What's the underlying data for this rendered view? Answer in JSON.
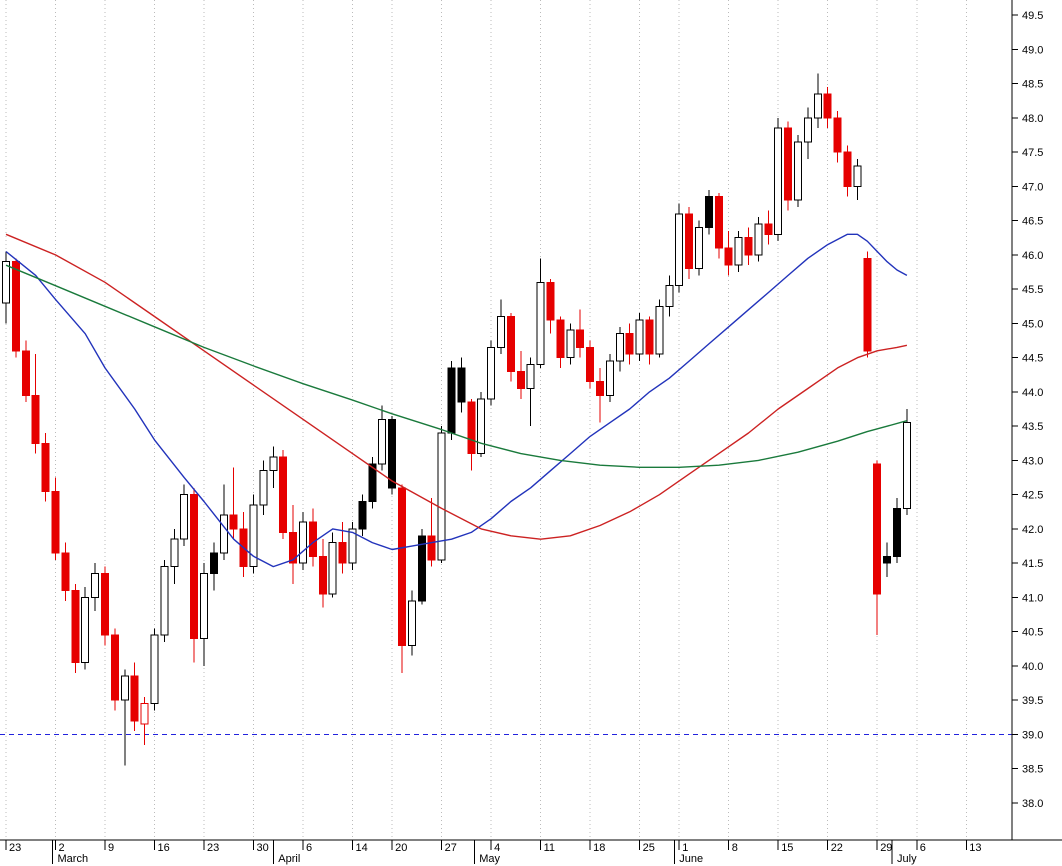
{
  "chart_data": {
    "type": "candlestick",
    "title": "",
    "ylim": [
      37.46,
      49.72
    ],
    "grid": "vertical-dotted-weekly",
    "support_line": {
      "price": 39.0,
      "style": "dashed",
      "color": "#2222dd"
    },
    "y_axis": {
      "side": "right",
      "tick_labels": [
        "49.5",
        "49.0",
        "48.5",
        "48.0",
        "47.5",
        "47.0",
        "46.5",
        "46.0",
        "45.5",
        "45.0",
        "44.5",
        "44.0",
        "43.5",
        "43.0",
        "42.5",
        "42.0",
        "41.5",
        "41.0",
        "40.5",
        "40.0",
        "39.5",
        "39.0",
        "38.5",
        "38.0"
      ],
      "tick_values": [
        49.5,
        49.0,
        48.5,
        48.0,
        47.5,
        47.0,
        46.5,
        46.0,
        45.5,
        45.0,
        44.5,
        44.0,
        43.5,
        43.0,
        42.5,
        42.0,
        41.5,
        41.0,
        40.5,
        40.0,
        39.5,
        39.0,
        38.5,
        38.0
      ]
    },
    "x_axis": {
      "total_slots": 102,
      "week_ticks": [
        {
          "slot": 0,
          "label": "23"
        },
        {
          "slot": 5,
          "label": "2"
        },
        {
          "slot": 10,
          "label": "9"
        },
        {
          "slot": 15,
          "label": "16"
        },
        {
          "slot": 20,
          "label": "23"
        },
        {
          "slot": 25,
          "label": "30"
        },
        {
          "slot": 30,
          "label": "6"
        },
        {
          "slot": 35,
          "label": "14"
        },
        {
          "slot": 39,
          "label": "20"
        },
        {
          "slot": 44,
          "label": "27"
        },
        {
          "slot": 49,
          "label": "4"
        },
        {
          "slot": 54,
          "label": "11"
        },
        {
          "slot": 59,
          "label": "18"
        },
        {
          "slot": 64,
          "label": "25"
        },
        {
          "slot": 68,
          "label": "1"
        },
        {
          "slot": 73,
          "label": "8"
        },
        {
          "slot": 78,
          "label": "15"
        },
        {
          "slot": 83,
          "label": "22"
        },
        {
          "slot": 88,
          "label": "29"
        },
        {
          "slot": 92,
          "label": "6"
        },
        {
          "slot": 97,
          "label": "13"
        }
      ],
      "months": [
        {
          "slot": 4.7,
          "label": "March"
        },
        {
          "slot": 27,
          "label": "April"
        },
        {
          "slot": 47.3,
          "label": "May"
        },
        {
          "slot": 67.5,
          "label": "June"
        },
        {
          "slot": 89.5,
          "label": "July"
        }
      ]
    },
    "candles": [
      [
        45.3,
        46.05,
        45.0,
        45.9,
        "u"
      ],
      [
        45.9,
        45.95,
        44.5,
        44.6,
        "d"
      ],
      [
        44.6,
        44.75,
        43.85,
        43.95,
        "d"
      ],
      [
        43.95,
        44.55,
        43.1,
        43.25,
        "d"
      ],
      [
        43.25,
        43.4,
        42.4,
        42.55,
        "d"
      ],
      [
        42.55,
        42.75,
        41.55,
        41.65,
        "d"
      ],
      [
        41.65,
        41.8,
        40.95,
        41.1,
        "d"
      ],
      [
        41.1,
        41.2,
        39.9,
        40.05,
        "d"
      ],
      [
        40.05,
        41.15,
        39.95,
        41.0,
        "u"
      ],
      [
        41.0,
        41.5,
        40.8,
        41.35,
        "u"
      ],
      [
        41.35,
        41.45,
        40.3,
        40.45,
        "d"
      ],
      [
        40.45,
        40.55,
        39.35,
        39.5,
        "d"
      ],
      [
        39.5,
        39.95,
        38.55,
        39.85,
        "u"
      ],
      [
        39.85,
        40.05,
        39.05,
        39.2,
        "d"
      ],
      [
        39.15,
        39.55,
        38.85,
        39.45,
        "dh"
      ],
      [
        39.45,
        40.55,
        39.35,
        40.45,
        "u"
      ],
      [
        40.45,
        41.55,
        40.35,
        41.45,
        "u"
      ],
      [
        41.45,
        42.0,
        41.2,
        41.85,
        "u"
      ],
      [
        41.85,
        42.65,
        41.75,
        42.5,
        "u"
      ],
      [
        42.5,
        42.6,
        40.05,
        40.4,
        "d"
      ],
      [
        40.4,
        41.5,
        40.0,
        41.35,
        "u"
      ],
      [
        41.35,
        41.8,
        41.1,
        41.65,
        "b"
      ],
      [
        41.65,
        42.65,
        41.55,
        42.2,
        "u"
      ],
      [
        42.2,
        42.9,
        41.85,
        42.0,
        "d"
      ],
      [
        42.0,
        42.25,
        41.3,
        41.45,
        "d"
      ],
      [
        41.45,
        42.5,
        41.35,
        42.35,
        "u"
      ],
      [
        42.35,
        43.0,
        42.2,
        42.85,
        "u"
      ],
      [
        42.85,
        43.2,
        42.6,
        43.05,
        "u"
      ],
      [
        43.05,
        43.15,
        41.85,
        41.95,
        "d"
      ],
      [
        41.95,
        42.35,
        41.2,
        41.5,
        "d"
      ],
      [
        41.5,
        42.25,
        41.4,
        42.1,
        "u"
      ],
      [
        42.1,
        42.3,
        41.45,
        41.6,
        "d"
      ],
      [
        41.6,
        41.85,
        40.85,
        41.05,
        "d"
      ],
      [
        41.05,
        41.95,
        41.0,
        41.8,
        "u"
      ],
      [
        41.8,
        42.1,
        41.35,
        41.5,
        "d"
      ],
      [
        41.5,
        42.1,
        41.4,
        42.0,
        "u"
      ],
      [
        42.0,
        42.5,
        41.9,
        42.4,
        "b"
      ],
      [
        42.4,
        43.05,
        42.3,
        42.95,
        "b"
      ],
      [
        42.95,
        43.8,
        42.85,
        43.6,
        "u"
      ],
      [
        43.6,
        43.65,
        42.5,
        42.6,
        "b"
      ],
      [
        42.6,
        42.65,
        39.9,
        40.3,
        "d"
      ],
      [
        40.3,
        41.1,
        40.15,
        40.95,
        "u"
      ],
      [
        40.95,
        42.0,
        40.9,
        41.9,
        "b"
      ],
      [
        41.9,
        42.45,
        41.45,
        41.55,
        "d"
      ],
      [
        41.55,
        43.5,
        41.5,
        43.4,
        "u"
      ],
      [
        43.4,
        44.45,
        43.3,
        44.35,
        "b"
      ],
      [
        44.35,
        44.5,
        43.7,
        43.85,
        "b"
      ],
      [
        43.85,
        43.9,
        42.85,
        43.1,
        "d"
      ],
      [
        43.1,
        44.0,
        43.05,
        43.9,
        "u"
      ],
      [
        43.9,
        44.75,
        43.8,
        44.65,
        "u"
      ],
      [
        44.65,
        45.35,
        44.55,
        45.1,
        "u"
      ],
      [
        45.1,
        45.15,
        44.15,
        44.3,
        "d"
      ],
      [
        44.3,
        44.6,
        43.9,
        44.05,
        "d"
      ],
      [
        44.05,
        44.5,
        43.5,
        44.4,
        "u"
      ],
      [
        44.4,
        45.95,
        44.35,
        45.6,
        "u"
      ],
      [
        45.6,
        45.65,
        44.85,
        45.05,
        "d"
      ],
      [
        45.05,
        45.1,
        44.35,
        44.5,
        "d"
      ],
      [
        44.5,
        45.0,
        44.4,
        44.9,
        "u"
      ],
      [
        44.9,
        45.2,
        44.5,
        44.65,
        "d"
      ],
      [
        44.65,
        44.75,
        44.05,
        44.15,
        "d"
      ],
      [
        44.15,
        44.35,
        43.55,
        43.95,
        "d"
      ],
      [
        43.95,
        44.55,
        43.85,
        44.45,
        "u"
      ],
      [
        44.45,
        44.95,
        44.3,
        44.85,
        "u"
      ],
      [
        44.85,
        45.0,
        44.4,
        44.55,
        "d"
      ],
      [
        44.55,
        45.15,
        44.45,
        45.05,
        "u"
      ],
      [
        45.05,
        45.1,
        44.4,
        44.55,
        "d"
      ],
      [
        44.55,
        45.35,
        44.5,
        45.25,
        "u"
      ],
      [
        45.25,
        45.7,
        45.1,
        45.55,
        "u"
      ],
      [
        45.55,
        46.75,
        45.45,
        46.6,
        "u"
      ],
      [
        46.6,
        46.7,
        45.65,
        45.8,
        "d"
      ],
      [
        45.8,
        46.5,
        45.7,
        46.4,
        "u"
      ],
      [
        46.4,
        46.95,
        46.3,
        46.85,
        "b"
      ],
      [
        46.85,
        46.9,
        45.95,
        46.1,
        "d"
      ],
      [
        46.1,
        46.35,
        45.7,
        45.85,
        "d"
      ],
      [
        45.85,
        46.35,
        45.75,
        46.25,
        "u"
      ],
      [
        46.25,
        46.4,
        45.85,
        46.0,
        "d"
      ],
      [
        46.0,
        46.55,
        45.9,
        46.45,
        "u"
      ],
      [
        46.45,
        46.65,
        46.15,
        46.3,
        "d"
      ],
      [
        46.3,
        48.0,
        46.2,
        47.85,
        "u"
      ],
      [
        47.85,
        47.95,
        46.65,
        46.8,
        "d"
      ],
      [
        46.8,
        47.75,
        46.7,
        47.65,
        "u"
      ],
      [
        47.65,
        48.15,
        47.4,
        48.0,
        "u"
      ],
      [
        48.0,
        48.65,
        47.85,
        48.35,
        "u"
      ],
      [
        48.35,
        48.45,
        47.85,
        48.0,
        "d"
      ],
      [
        48.0,
        48.1,
        47.35,
        47.5,
        "d"
      ],
      [
        47.5,
        47.6,
        46.85,
        47.0,
        "d"
      ],
      [
        47.0,
        47.4,
        46.8,
        47.3,
        "u"
      ],
      [
        45.95,
        46.05,
        44.5,
        44.6,
        "d"
      ],
      [
        42.95,
        43.0,
        40.45,
        41.05,
        "d"
      ],
      [
        41.5,
        41.8,
        41.3,
        41.6,
        "b"
      ],
      [
        41.6,
        42.45,
        41.5,
        42.3,
        "b"
      ],
      [
        42.3,
        43.75,
        42.2,
        43.55,
        "u"
      ]
    ],
    "candle_style_legend": {
      "u": "up-hollow",
      "d": "down-red",
      "b": "black-filled",
      "dh": "down-red-hollow"
    },
    "moving_averages": [
      {
        "name": "ma-fast-blue",
        "color": "#2233bb",
        "points": [
          [
            0,
            46.05
          ],
          [
            3,
            45.7
          ],
          [
            5,
            45.35
          ],
          [
            8,
            44.85
          ],
          [
            10,
            44.35
          ],
          [
            13,
            43.75
          ],
          [
            15,
            43.3
          ],
          [
            18,
            42.75
          ],
          [
            20,
            42.4
          ],
          [
            23,
            41.85
          ],
          [
            25,
            41.6
          ],
          [
            27,
            41.45
          ],
          [
            29,
            41.55
          ],
          [
            31,
            41.8
          ],
          [
            33,
            42.0
          ],
          [
            35,
            41.95
          ],
          [
            37,
            41.8
          ],
          [
            39,
            41.7
          ],
          [
            41,
            41.75
          ],
          [
            43,
            41.8
          ],
          [
            45,
            41.85
          ],
          [
            47,
            41.95
          ],
          [
            49,
            42.15
          ],
          [
            51,
            42.4
          ],
          [
            53,
            42.6
          ],
          [
            55,
            42.85
          ],
          [
            57,
            43.1
          ],
          [
            59,
            43.35
          ],
          [
            61,
            43.55
          ],
          [
            63,
            43.75
          ],
          [
            65,
            44.0
          ],
          [
            67,
            44.2
          ],
          [
            69,
            44.45
          ],
          [
            71,
            44.7
          ],
          [
            73,
            44.95
          ],
          [
            75,
            45.2
          ],
          [
            77,
            45.45
          ],
          [
            79,
            45.7
          ],
          [
            81,
            45.95
          ],
          [
            83,
            46.15
          ],
          [
            85,
            46.3
          ],
          [
            86,
            46.3
          ],
          [
            87,
            46.2
          ],
          [
            88,
            46.05
          ],
          [
            89,
            45.9
          ],
          [
            90,
            45.78
          ],
          [
            91,
            45.7
          ]
        ]
      },
      {
        "name": "ma-medium-red",
        "color": "#cc2222",
        "points": [
          [
            0,
            46.3
          ],
          [
            5,
            46.0
          ],
          [
            10,
            45.6
          ],
          [
            15,
            45.1
          ],
          [
            20,
            44.6
          ],
          [
            25,
            44.1
          ],
          [
            30,
            43.6
          ],
          [
            35,
            43.1
          ],
          [
            39,
            42.7
          ],
          [
            44,
            42.3
          ],
          [
            48,
            42.0
          ],
          [
            51,
            41.9
          ],
          [
            54,
            41.85
          ],
          [
            57,
            41.9
          ],
          [
            60,
            42.05
          ],
          [
            63,
            42.25
          ],
          [
            66,
            42.5
          ],
          [
            69,
            42.8
          ],
          [
            72,
            43.1
          ],
          [
            75,
            43.4
          ],
          [
            78,
            43.75
          ],
          [
            81,
            44.05
          ],
          [
            84,
            44.35
          ],
          [
            86,
            44.5
          ],
          [
            88,
            44.6
          ],
          [
            90,
            44.65
          ],
          [
            91,
            44.68
          ]
        ]
      },
      {
        "name": "ma-slow-green",
        "color": "#1a7a3c",
        "points": [
          [
            0,
            45.85
          ],
          [
            5,
            45.55
          ],
          [
            10,
            45.25
          ],
          [
            15,
            44.95
          ],
          [
            20,
            44.65
          ],
          [
            25,
            44.38
          ],
          [
            30,
            44.12
          ],
          [
            35,
            43.88
          ],
          [
            39,
            43.68
          ],
          [
            44,
            43.45
          ],
          [
            48,
            43.25
          ],
          [
            52,
            43.1
          ],
          [
            56,
            43.0
          ],
          [
            60,
            42.93
          ],
          [
            64,
            42.9
          ],
          [
            68,
            42.9
          ],
          [
            72,
            42.93
          ],
          [
            76,
            43.0
          ],
          [
            80,
            43.12
          ],
          [
            84,
            43.28
          ],
          [
            87,
            43.42
          ],
          [
            89,
            43.5
          ],
          [
            91,
            43.58
          ]
        ]
      }
    ],
    "colors": {
      "background": "#ffffff",
      "axis": "#000000",
      "grid": "#bbbbbb",
      "candle_up_outline": "#000000",
      "candle_down": "#e60000",
      "candle_black": "#000000",
      "support_dashed": "#2222dd"
    }
  }
}
